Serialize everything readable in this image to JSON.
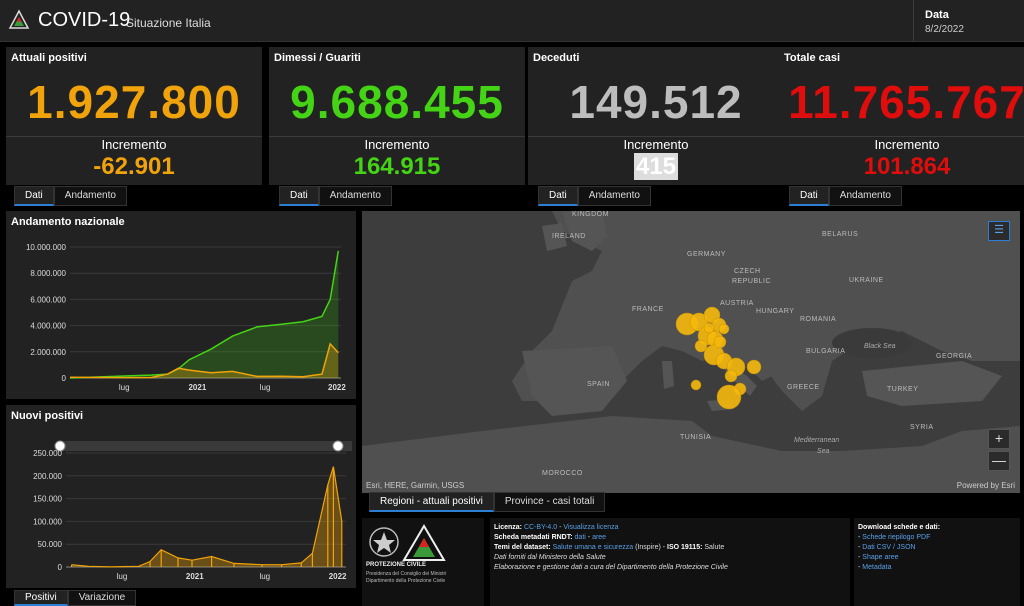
{
  "header": {
    "title": "COVID-19",
    "subtitle": "Situazione Italia",
    "date_label": "Data",
    "date_value": "8/2/2022"
  },
  "kpis": [
    {
      "title": "Attuali positivi",
      "value": "1.927.800",
      "increment_label": "Incremento",
      "increment_value": "-62.901",
      "color": "#f0a30a"
    },
    {
      "title": "Dimessi / Guariti",
      "value": "9.688.455",
      "increment_label": "Incremento",
      "increment_value": "164.915",
      "color": "#44d415"
    },
    {
      "title": "Deceduti",
      "value": "149.512",
      "increment_label": "Incremento",
      "increment_value": "415",
      "color": "#bdbdbd"
    },
    {
      "title": "Totale casi",
      "value": "11.765.767",
      "increment_label": "Incremento",
      "increment_value": "101.864",
      "color": "#e00d0d"
    }
  ],
  "kpi_tabs": {
    "tab1": "Dati",
    "tab2": "Andamento"
  },
  "chart_data": [
    {
      "type": "area",
      "title": "Andamento nazionale",
      "xlabel": "",
      "ylabel": "",
      "x_ticks": [
        "lug",
        "2021",
        "lug",
        "2022"
      ],
      "y_ticks": [
        "0",
        "2.000.000",
        "4.000.000",
        "6.000.000",
        "8.000.000",
        "10.000.000"
      ],
      "ylim": [
        0,
        10000000
      ],
      "x": [
        "2020-03",
        "2020-06",
        "2020-09",
        "2020-10",
        "2020-11",
        "2020-12",
        "2021-02",
        "2021-04",
        "2021-06",
        "2021-08",
        "2021-10",
        "2021-12",
        "2022-01",
        "2022-02"
      ],
      "series": [
        {
          "name": "",
          "color": "#44d415",
          "values": [
            0,
            150000,
            220000,
            300000,
            700000,
            1400000,
            2200000,
            3200000,
            3900000,
            4100000,
            4300000,
            4700000,
            6000000,
            9700000
          ]
        },
        {
          "name": "",
          "color": "#f0a30a",
          "values": [
            50000,
            30000,
            40000,
            300000,
            750000,
            600000,
            400000,
            500000,
            120000,
            130000,
            90000,
            300000,
            2600000,
            1930000
          ]
        }
      ]
    },
    {
      "type": "bar",
      "title": "Nuovi positivi",
      "x_ticks": [
        "lug",
        "2021",
        "lug",
        "2022"
      ],
      "y_ticks": [
        "0",
        "50.000",
        "100.000",
        "150.000",
        "200.000",
        "250.000"
      ],
      "ylim": [
        0,
        250000
      ],
      "color": "#f0a30a",
      "x": [
        "2020-03",
        "2020-05",
        "2020-07",
        "2020-09",
        "2020-10",
        "2020-11",
        "2020-12",
        "2021-01",
        "2021-03",
        "2021-05",
        "2021-07",
        "2021-09",
        "2021-11",
        "2021-12",
        "2022-01",
        "2022-01b",
        "2022-02"
      ],
      "values": [
        5000,
        1500,
        300,
        1500,
        12000,
        38000,
        20000,
        15000,
        23000,
        8000,
        5000,
        5000,
        9000,
        30000,
        180000,
        220000,
        100000
      ]
    }
  ],
  "chart_tabs": {
    "tab1": "Positivi",
    "tab2": "Variazione"
  },
  "map": {
    "countries": [
      "KINGDOM",
      "IRELAND",
      "GERMANY",
      "BELARUS",
      "CZECH",
      "REPUBLIC",
      "UKRAINE",
      "FRANCE",
      "AUSTRIA",
      "HUNGARY",
      "ROMANIA",
      "BULGARIA",
      "SPAIN",
      "GREECE",
      "TURKEY",
      "GEORGIA",
      "TUNISIA",
      "SYRIA",
      "MOROCCO"
    ],
    "seas": [
      "Black Sea",
      "Mediterranean",
      "Sea"
    ],
    "attribution": "Esri, HERE, Garmin, USGS",
    "powered": "Powered by Esri",
    "bubble_color": "#f5b80c",
    "zoom_in": "+",
    "zoom_out": "—",
    "legend_icon": "list-icon",
    "tab1": "Regioni - attuali positivi",
    "tab2": "Province - casi totali"
  },
  "info": {
    "logo_text1": "PROTEZIONE CIVILE",
    "logo_text2": "Presidenza del Consiglio dei Ministri",
    "logo_text3": "Dipartimento della Protezione Civile",
    "licenza_label": "Licenza:",
    "licenza_link": "CC-BY-4.0",
    "licenza_sep": " - ",
    "licenza_view": "Visualizza licenza",
    "rndt_label": "Scheda metadati RNDT:",
    "rndt_link1": "dati",
    "rndt_sep": " - ",
    "rndt_link2": "aree",
    "temi_label": "Temi del dataset:",
    "temi_link": "Salute umana e sicurezza",
    "temi_rest": " (Inspire) - ",
    "iso_label": "ISO 19115:",
    "iso_value": " Salute",
    "line4": "Dati forniti dal Ministero della Salute",
    "line5": "Elaborazione e gestione dati a cura del Dipartimento della Protezione Civile",
    "download_title": "Download schede e dati:",
    "download_links": [
      "Schede riepilogo PDF",
      "Dati CSV / JSON",
      "Shape aree",
      "Metadata"
    ]
  }
}
